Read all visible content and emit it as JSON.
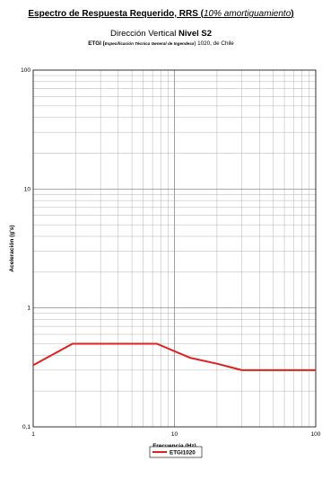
{
  "header": {
    "title_main": "Espectro de Respuesta Requerido, RRS (",
    "title_italic": "10% amortiguamiento",
    "title_close": ")",
    "direction_prefix": "Dirección Vertical ",
    "direction_bold": "Nivel S2",
    "spec_prefix": "ETGI (",
    "spec_expansion": "Especificación Técnica General de Ingendesa",
    "spec_suffix": ") 1020, de Chile"
  },
  "chart_data": {
    "type": "line",
    "title": "Espectro de Respuesta Requerido, RRS (10% amortiguamiento)",
    "xlabel": "Frecuencia (Hz)",
    "ylabel": "Aceleración (g's)",
    "xscale": "log",
    "yscale": "log",
    "xlim": [
      1,
      100
    ],
    "ylim": [
      0.1,
      100
    ],
    "grid": true,
    "legend_position": "bottom-center",
    "x_tick_labels": [
      "1",
      "10",
      "100"
    ],
    "y_tick_labels": [
      "0,1",
      "1",
      "10",
      "100"
    ],
    "series": [
      {
        "name": "ETGI1020",
        "color": "#e02020",
        "x": [
          1,
          1.9,
          7.5,
          13,
          20,
          30,
          100
        ],
        "y": [
          0.33,
          0.5,
          0.5,
          0.38,
          0.34,
          0.3,
          0.3
        ]
      }
    ]
  }
}
